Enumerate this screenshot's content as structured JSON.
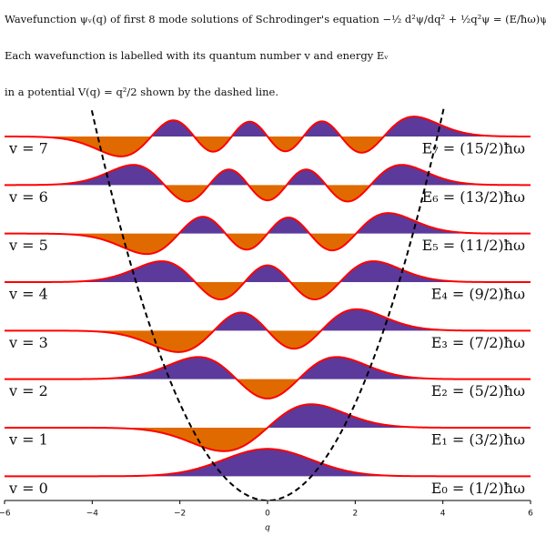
{
  "chart_data": {
    "type": "wavefunction",
    "title": "Wavefunction ψᵥ(q) of first 8 mode solutions of Schrodinger's equation  −½ d²ψ/dq² + ½q²ψ = (E/ħω)ψ",
    "subtitle": "Each wavefunction is labelled with its quantum number v and energy Eᵥ",
    "subtitle2": "in a potential V(q) = q²/2 shown by the dashed line.",
    "x_label": "q",
    "xlim": [
      -6,
      6
    ],
    "xticks": [
      {
        "value": -6,
        "label": "−6"
      },
      {
        "value": -4,
        "label": "−4"
      },
      {
        "value": -2,
        "label": "−2"
      },
      0,
      2,
      4,
      6
    ],
    "ylim": [
      0,
      8.1
    ],
    "positive_color": "#5b3a9b",
    "negative_color": "#e06a00",
    "line_color": "#ff0000",
    "potential_color": "#000000",
    "series": [
      {
        "name": "v = 0",
        "v": 0,
        "energy": 0.5,
        "energy_label": "E₀ = (1/2)ħω"
      },
      {
        "name": "v = 1",
        "v": 1,
        "energy": 1.5,
        "energy_label": "E₁ = (3/2)ħω"
      },
      {
        "name": "v = 2",
        "v": 2,
        "energy": 2.5,
        "energy_label": "E₂ = (5/2)ħω"
      },
      {
        "name": "v = 3",
        "v": 3,
        "energy": 3.5,
        "energy_label": "E₃ = (7/2)ħω"
      },
      {
        "name": "v = 4",
        "v": 4,
        "energy": 4.5,
        "energy_label": "E₄ = (9/2)ħω"
      },
      {
        "name": "v = 5",
        "v": 5,
        "energy": 5.5,
        "energy_label": "E₅ = (11/2)ħω"
      },
      {
        "name": "v = 6",
        "v": 6,
        "energy": 6.5,
        "energy_label": "E₆ = (13/2)ħω"
      },
      {
        "name": "v = 7",
        "v": 7,
        "energy": 7.5,
        "energy_label": "E₇ = (15/2)ħω"
      }
    ]
  }
}
